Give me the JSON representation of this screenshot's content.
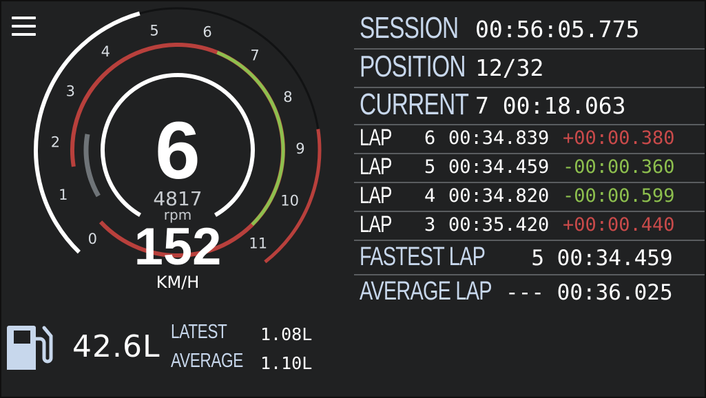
{
  "colors": {
    "background": "#202122",
    "label_blue": "#c7d7ec",
    "delta_slower": "#c94a4a",
    "delta_faster": "#8dbf4e",
    "redline": "#b8403c",
    "optimal_shift": "#8dbf4e",
    "cold_band": "#6f7478"
  },
  "menu": {
    "icon": "hamburger-menu-icon"
  },
  "gauge": {
    "gear": "6",
    "rpm_value": "4817",
    "rpm_unit": "rpm",
    "speed_value": "152",
    "speed_unit": "KM/H",
    "scale_labels": [
      "0",
      "1",
      "2",
      "3",
      "4",
      "5",
      "6",
      "7",
      "8",
      "9",
      "10",
      "11"
    ],
    "rpm_fraction": 0.438
  },
  "fuel": {
    "icon": "fuel-pump-icon",
    "total": "42.6L",
    "latest_label": "LATEST",
    "latest_value": "1.08L",
    "average_label": "AVERAGE",
    "average_value": "1.10L"
  },
  "session": {
    "session_label": "SESSION",
    "session_value": "00:56:05.775",
    "position_label": "POSITION",
    "position_value": "12/32",
    "current_label": "CURRENT",
    "current_value": "7 00:18.063"
  },
  "laps": [
    {
      "label": "LAP",
      "number": "6",
      "time": "00:34.839",
      "delta": "+00:00.380",
      "faster": false
    },
    {
      "label": "LAP",
      "number": "5",
      "time": "00:34.459",
      "delta": "-00:00.360",
      "faster": true
    },
    {
      "label": "LAP",
      "number": "4",
      "time": "00:34.820",
      "delta": "-00:00.599",
      "faster": true
    },
    {
      "label": "LAP",
      "number": "3",
      "time": "00:35.420",
      "delta": "+00:00.440",
      "faster": false
    }
  ],
  "summary": {
    "fastest_label": "FASTEST  LAP",
    "fastest_value": "  5 00:34.459",
    "average_label": "AVERAGE LAP",
    "average_value": "--- 00:36.025"
  }
}
